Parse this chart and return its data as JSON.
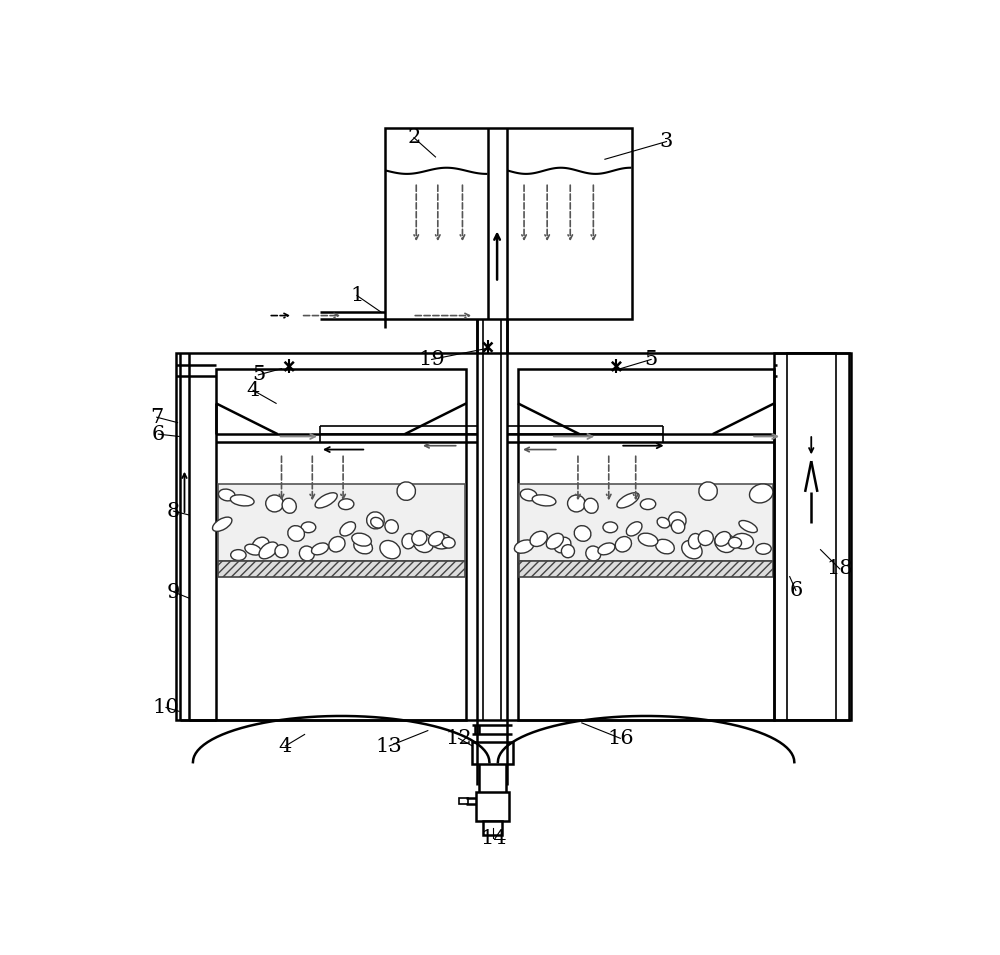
{
  "bg_color": "#ffffff",
  "lc": "#000000",
  "lw_main": 1.8,
  "lw_thin": 1.2,
  "label_fs": 15,
  "figsize": [
    10.0,
    9.55
  ],
  "dpi": 100
}
